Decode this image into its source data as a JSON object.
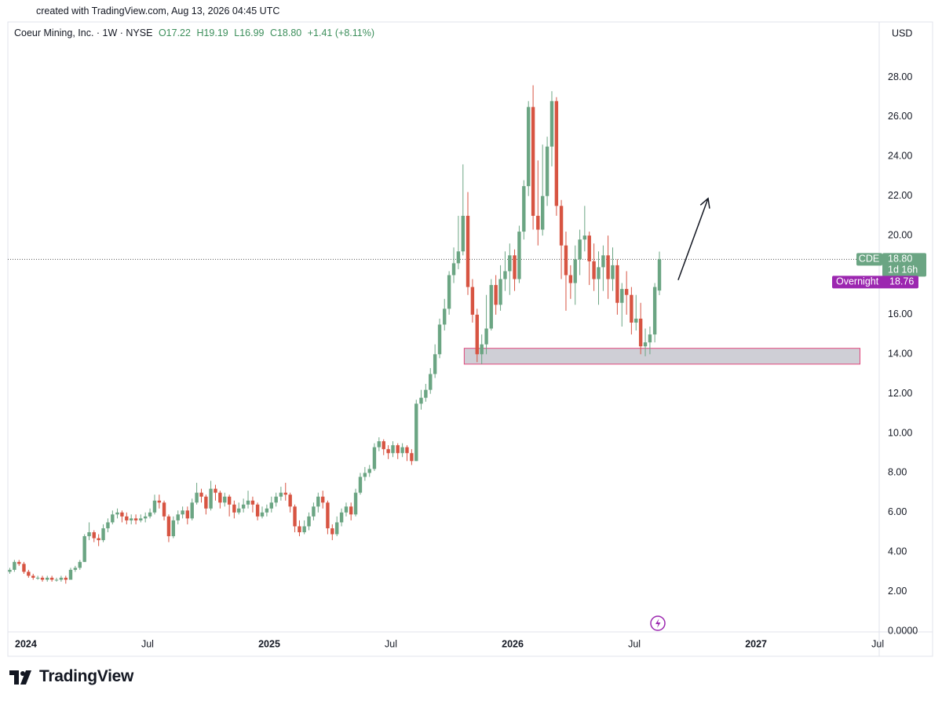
{
  "header": "created with TradingView.com, Aug 13, 2026 04:45 UTC",
  "legend": {
    "name": "Coeur Mining, Inc. · 1W · NYSE",
    "open": "O17.22",
    "high": "H19.19",
    "low": "L16.99",
    "close": "C18.80",
    "change": "+1.41 (+8.11%)"
  },
  "brand": "TradingView",
  "chart_data": {
    "type": "candlestick",
    "currency": "USD",
    "up_color": "#6ba583",
    "down_color": "#d75442",
    "grid": false,
    "xlim": [
      2023.926,
      2027.506
    ],
    "xticks": [
      {
        "value": 2024,
        "label": "2024"
      },
      {
        "value": 2024.5,
        "label": "Jul"
      },
      {
        "value": 2025,
        "label": "2025"
      },
      {
        "value": 2025.5,
        "label": "Jul"
      },
      {
        "value": 2026,
        "label": "2026"
      },
      {
        "value": 2026.5,
        "label": "Jul"
      },
      {
        "value": 2027,
        "label": "2027"
      },
      {
        "value": 2027.5,
        "label": "Jul"
      }
    ],
    "ylim": [
      0,
      30.8
    ],
    "yticks": [
      {
        "value": 0,
        "label": "0.0000"
      },
      {
        "value": 2,
        "label": "2.00"
      },
      {
        "value": 4,
        "label": "4.00"
      },
      {
        "value": 6,
        "label": "6.00"
      },
      {
        "value": 8,
        "label": "8.00"
      },
      {
        "value": 10,
        "label": "10.00"
      },
      {
        "value": 12,
        "label": "12.00"
      },
      {
        "value": 14,
        "label": "14.00"
      },
      {
        "value": 16,
        "label": "16.00"
      },
      {
        "value": 18,
        "label": "18.00"
      },
      {
        "value": 20,
        "label": "20.00"
      },
      {
        "value": 22,
        "label": "22.00"
      },
      {
        "value": 24,
        "label": "24.00"
      },
      {
        "value": 26,
        "label": "26.00"
      },
      {
        "value": 28,
        "label": "28.00"
      }
    ],
    "x": [
      2023.934,
      2023.953,
      2023.972,
      2023.992,
      2024.011,
      2024.03,
      2024.049,
      2024.068,
      2024.088,
      2024.107,
      2024.126,
      2024.145,
      2024.164,
      2024.184,
      2024.203,
      2024.222,
      2024.241,
      2024.26,
      2024.28,
      2024.299,
      2024.318,
      2024.337,
      2024.356,
      2024.376,
      2024.395,
      2024.414,
      2024.433,
      2024.452,
      2024.472,
      2024.491,
      2024.51,
      2024.529,
      2024.548,
      2024.568,
      2024.587,
      2024.606,
      2024.625,
      2024.644,
      2024.664,
      2024.683,
      2024.702,
      2024.721,
      2024.74,
      2024.76,
      2024.779,
      2024.798,
      2024.817,
      2024.836,
      2024.856,
      2024.875,
      2024.894,
      2024.913,
      2024.932,
      2024.952,
      2024.971,
      2024.99,
      2025.009,
      2025.028,
      2025.048,
      2025.067,
      2025.086,
      2025.105,
      2025.124,
      2025.144,
      2025.163,
      2025.182,
      2025.201,
      2025.22,
      2025.24,
      2025.259,
      2025.278,
      2025.297,
      2025.316,
      2025.336,
      2025.355,
      2025.374,
      2025.393,
      2025.412,
      2025.432,
      2025.451,
      2025.47,
      2025.489,
      2025.508,
      2025.528,
      2025.547,
      2025.566,
      2025.585,
      2025.604,
      2025.624,
      2025.643,
      2025.662,
      2025.681,
      2025.7,
      2025.72,
      2025.739,
      2025.758,
      2025.777,
      2025.796,
      2025.816,
      2025.835,
      2025.854,
      2025.873,
      2025.892,
      2025.912,
      2025.931,
      2025.95,
      2025.969,
      2025.988,
      2026.008,
      2026.027,
      2026.046,
      2026.065,
      2026.084,
      2026.104,
      2026.123,
      2026.142,
      2026.161,
      2026.18,
      2026.2,
      2026.219,
      2026.238,
      2026.257,
      2026.276,
      2026.296,
      2026.315,
      2026.334,
      2026.353,
      2026.372,
      2026.392,
      2026.411,
      2026.43,
      2026.449,
      2026.468,
      2026.488,
      2026.507,
      2026.526,
      2026.545,
      2026.564,
      2026.584,
      2026.603
    ],
    "open": [
      3.0,
      3.1,
      3.5,
      3.4,
      3.0,
      2.8,
      2.7,
      2.7,
      2.6,
      2.7,
      2.6,
      2.6,
      2.7,
      2.6,
      3.1,
      3.2,
      3.5,
      4.8,
      5.0,
      4.7,
      4.6,
      5.2,
      5.5,
      5.9,
      6.0,
      5.8,
      5.6,
      5.7,
      5.6,
      5.7,
      5.8,
      6.0,
      6.6,
      6.5,
      5.8,
      4.8,
      5.6,
      5.9,
      6.1,
      5.7,
      6.5,
      7.0,
      6.8,
      6.2,
      7.2,
      7.0,
      6.5,
      6.8,
      6.4,
      6.0,
      6.2,
      6.4,
      6.6,
      6.4,
      5.8,
      6.0,
      6.2,
      6.5,
      6.8,
      7.0,
      6.9,
      6.3,
      5.3,
      5.0,
      5.3,
      5.8,
      6.3,
      6.8,
      6.5,
      5.2,
      4.9,
      5.5,
      6.0,
      6.3,
      5.9,
      7.0,
      7.8,
      8.0,
      8.2,
      9.3,
      9.6,
      9.2,
      9.0,
      9.4,
      9.0,
      9.3,
      9.0,
      8.6,
      11.5,
      11.8,
      12.2,
      13.0,
      14.0,
      15.5,
      16.3,
      18.0,
      18.6,
      19.2,
      21.0,
      17.4,
      16.0,
      14.0,
      14.5,
      15.3,
      17.5,
      16.5,
      17.8,
      18.2,
      19.0,
      17.8,
      20.2,
      22.5,
      26.5,
      21.0,
      20.3,
      22.0,
      24.5,
      26.8,
      21.5,
      19.5,
      18.0,
      17.6,
      18.8,
      19.8,
      20.0,
      18.7,
      17.8,
      18.4,
      19.0,
      17.8,
      18.5,
      16.6,
      17.3,
      17.0,
      15.6,
      15.8,
      14.4,
      14.6,
      15.0,
      17.22
    ],
    "high": [
      3.2,
      3.6,
      3.6,
      3.5,
      3.1,
      2.9,
      2.8,
      2.8,
      2.8,
      2.8,
      2.7,
      2.8,
      2.8,
      3.2,
      3.3,
      3.6,
      4.9,
      5.5,
      5.1,
      4.9,
      5.4,
      5.7,
      6.1,
      6.2,
      6.1,
      6.0,
      5.9,
      5.9,
      5.9,
      6.0,
      6.2,
      6.9,
      6.9,
      6.6,
      5.9,
      5.8,
      6.1,
      6.3,
      6.3,
      6.7,
      7.5,
      7.2,
      6.9,
      7.6,
      7.4,
      7.1,
      7.0,
      6.9,
      6.6,
      6.5,
      6.7,
      7.1,
      6.8,
      6.5,
      6.3,
      6.4,
      6.8,
      7.0,
      7.3,
      7.5,
      7.0,
      6.4,
      5.6,
      5.6,
      6.0,
      6.5,
      7.0,
      7.1,
      6.6,
      5.4,
      5.8,
      6.2,
      6.5,
      6.5,
      7.2,
      8.0,
      8.3,
      8.4,
      9.5,
      9.8,
      9.7,
      9.4,
      9.6,
      9.5,
      9.5,
      9.4,
      9.2,
      11.7,
      12.2,
      12.5,
      13.3,
      14.5,
      15.8,
      16.8,
      18.2,
      19.4,
      21.0,
      23.6,
      22.2,
      17.8,
      16.3,
      15.0,
      17.0,
      17.8,
      18.0,
      18.5,
      19.2,
      19.6,
      19.3,
      20.5,
      22.8,
      26.8,
      27.6,
      23.8,
      24.6,
      25.0,
      27.3,
      27.0,
      21.8,
      20.2,
      18.5,
      19.5,
      20.3,
      21.5,
      20.2,
      19.6,
      19.2,
      19.5,
      20.0,
      19.4,
      18.8,
      17.6,
      18.2,
      17.4,
      17.0,
      16.6,
      15.3,
      15.4,
      17.6,
      19.19
    ],
    "low": [
      2.9,
      3.0,
      3.3,
      2.9,
      2.7,
      2.6,
      2.6,
      2.5,
      2.5,
      2.5,
      2.5,
      2.5,
      2.4,
      2.6,
      3.0,
      3.1,
      3.5,
      4.6,
      4.5,
      4.3,
      4.5,
      5.0,
      5.4,
      5.7,
      5.5,
      5.4,
      5.4,
      5.4,
      5.5,
      5.5,
      5.7,
      5.9,
      6.2,
      5.6,
      4.5,
      4.7,
      5.4,
      5.7,
      5.4,
      5.6,
      6.4,
      6.5,
      5.9,
      6.1,
      6.6,
      6.2,
      6.3,
      5.8,
      5.7,
      5.9,
      6.0,
      6.2,
      6.0,
      5.6,
      5.7,
      5.8,
      6.0,
      6.3,
      6.6,
      6.6,
      6.0,
      5.0,
      4.8,
      4.9,
      5.1,
      5.6,
      6.0,
      6.2,
      4.9,
      4.6,
      4.8,
      5.3,
      5.8,
      5.6,
      5.8,
      6.9,
      7.6,
      7.8,
      8.1,
      9.1,
      8.9,
      8.7,
      8.8,
      8.7,
      8.8,
      8.6,
      8.4,
      8.6,
      11.2,
      11.6,
      12.0,
      12.8,
      13.8,
      15.2,
      16.0,
      17.6,
      18.3,
      19.0,
      17.0,
      15.6,
      13.6,
      13.5,
      14.0,
      15.2,
      16.0,
      16.2,
      17.2,
      17.0,
      17.2,
      17.6,
      19.8,
      22.0,
      20.3,
      19.5,
      20.0,
      21.5,
      23.5,
      21.0,
      17.8,
      16.2,
      16.8,
      16.5,
      18.0,
      19.2,
      17.5,
      17.2,
      16.5,
      17.2,
      16.8,
      17.2,
      16.0,
      15.4,
      16.0,
      15.0,
      15.2,
      14.0,
      13.9,
      14.0,
      14.6,
      16.99
    ],
    "close": [
      3.1,
      3.5,
      3.4,
      3.0,
      2.8,
      2.7,
      2.7,
      2.6,
      2.7,
      2.6,
      2.6,
      2.7,
      2.6,
      3.1,
      3.2,
      3.5,
      4.8,
      5.0,
      4.7,
      4.6,
      5.2,
      5.5,
      5.9,
      6.0,
      5.8,
      5.6,
      5.7,
      5.6,
      5.7,
      5.8,
      6.0,
      6.6,
      6.5,
      5.8,
      4.8,
      5.6,
      5.9,
      6.1,
      5.7,
      6.5,
      7.0,
      6.8,
      6.2,
      7.2,
      7.0,
      6.5,
      6.8,
      6.4,
      6.0,
      6.2,
      6.4,
      6.6,
      6.4,
      5.8,
      6.0,
      6.2,
      6.5,
      6.8,
      7.0,
      6.9,
      6.3,
      5.3,
      5.0,
      5.3,
      5.8,
      6.3,
      6.8,
      6.5,
      5.2,
      4.9,
      5.5,
      6.0,
      6.3,
      5.9,
      7.0,
      7.8,
      8.0,
      8.2,
      9.3,
      9.6,
      9.2,
      9.0,
      9.4,
      9.0,
      9.3,
      9.0,
      8.6,
      11.5,
      11.8,
      12.2,
      13.0,
      14.0,
      15.5,
      16.3,
      18.0,
      18.6,
      19.2,
      21.0,
      17.4,
      16.0,
      14.0,
      14.5,
      15.3,
      17.5,
      16.5,
      17.8,
      18.2,
      19.0,
      17.8,
      20.2,
      22.5,
      26.5,
      21.0,
      20.3,
      22.0,
      24.5,
      26.8,
      21.5,
      19.5,
      18.0,
      17.6,
      18.8,
      19.8,
      20.0,
      18.7,
      17.8,
      18.4,
      19.0,
      17.8,
      18.5,
      16.6,
      17.3,
      17.0,
      15.6,
      15.8,
      14.4,
      14.6,
      15.0,
      17.4,
      18.8
    ],
    "price_labels": [
      {
        "name": "CDE",
        "value": 18.8,
        "label": "18.80",
        "countdown": "1d 16h",
        "color": "#6ba583"
      },
      {
        "name": "Overnight",
        "value": 18.76,
        "label": "18.76",
        "color": "#9c27b0"
      }
    ],
    "drawings": [
      {
        "shape": "rect",
        "x": [
          2025.801,
          2027.427
        ],
        "y": [
          13.5,
          14.3
        ],
        "color": "#e0457b",
        "fill": "#cfcfd6"
      },
      {
        "shape": "arrow",
        "x": [
          2026.68,
          2026.803
        ],
        "y": [
          17.75,
          21.88
        ],
        "color": "#131722"
      }
    ]
  }
}
